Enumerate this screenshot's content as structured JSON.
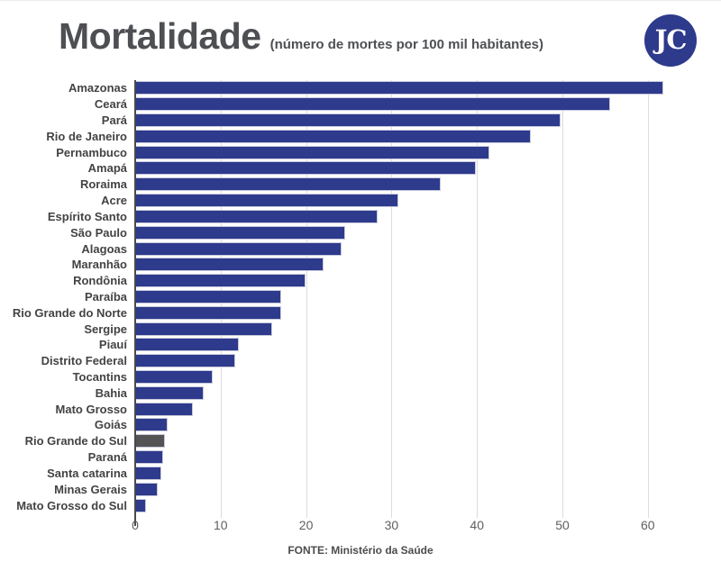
{
  "header": {
    "title": "Mortalidade",
    "subtitle": "(número de mortes por 100 mil habitantes)",
    "logo_text": "JC",
    "logo_color": "#2e3a8c"
  },
  "footer": {
    "source": "FONTE: Ministério da Saúde"
  },
  "chart_data": {
    "type": "bar",
    "orientation": "horizontal",
    "title": "Mortalidade",
    "subtitle": "(número de mortes por 100 mil habitantes)",
    "xlabel": "",
    "ylabel": "",
    "xlim": [
      0,
      65.4
    ],
    "x_ticks": [
      0,
      10,
      20,
      30,
      40,
      50,
      60
    ],
    "grid": true,
    "legend": "none",
    "bar_color": "#2e3a8c",
    "highlight_color": "#545454",
    "highlight_category": "Rio Grande do Sul",
    "source": "FONTE: Ministério da Saúde",
    "categories": [
      "Amazonas",
      "Ceará",
      "Pará",
      "Rio de Janeiro",
      "Pernambuco",
      "Amapá",
      "Roraima",
      "Acre",
      "Espírito Santo",
      "São Paulo",
      "Alagoas",
      "Maranhão",
      "Rondônia",
      "Paraíba",
      "Rio Grande do Norte",
      "Sergipe",
      "Piauí",
      "Distrito Federal",
      "Tocantins",
      "Bahia",
      "Mato Grosso",
      "Goiás",
      "Rio Grande do Sul",
      "Paraná",
      "Santa catarina",
      "Minas Gerais",
      "Mato Grosso do Sul"
    ],
    "values": [
      61.8,
      55.6,
      49.8,
      46.3,
      41.5,
      39.9,
      35.8,
      30.8,
      28.4,
      24.6,
      24.2,
      22.0,
      19.9,
      17.1,
      17.1,
      16.0,
      12.1,
      11.7,
      9.1,
      8.0,
      6.7,
      3.8,
      3.5,
      3.3,
      3.1,
      2.6,
      1.3
    ]
  }
}
